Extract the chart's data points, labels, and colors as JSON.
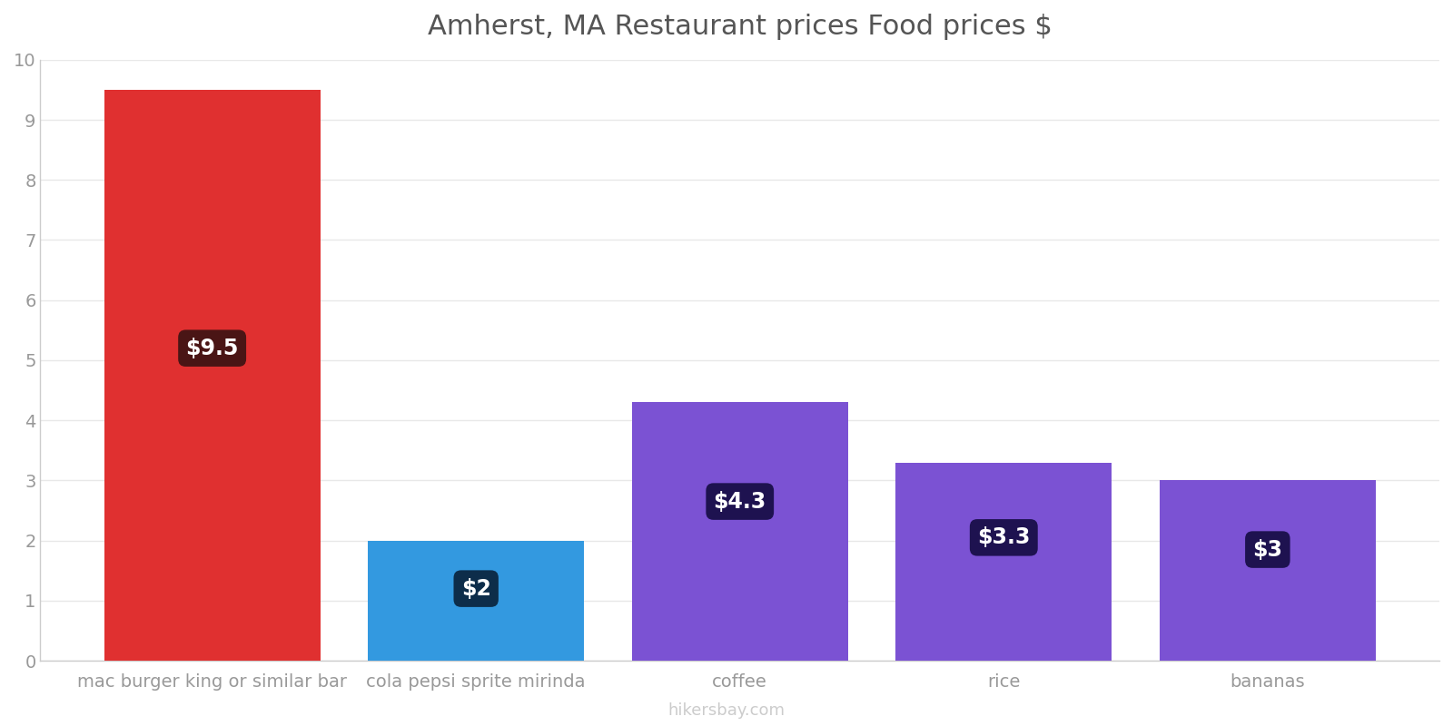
{
  "title": "Amherst, MA Restaurant prices Food prices $",
  "categories": [
    "mac burger king or similar bar",
    "cola pepsi sprite mirinda",
    "coffee",
    "rice",
    "bananas"
  ],
  "values": [
    9.5,
    2.0,
    4.3,
    3.3,
    3.0
  ],
  "labels": [
    "$9.5",
    "$2",
    "$4.3",
    "$3.3",
    "$3"
  ],
  "bar_colors": [
    "#e03030",
    "#3399e0",
    "#7b52d3",
    "#7b52d3",
    "#7b52d3"
  ],
  "label_bg_colors": [
    "#4a1515",
    "#0d2d4a",
    "#1e1250",
    "#1e1250",
    "#1e1250"
  ],
  "label_y_positions": [
    5.2,
    1.2,
    2.65,
    2.05,
    1.85
  ],
  "ylim": [
    0,
    10
  ],
  "yticks": [
    0,
    1,
    2,
    3,
    4,
    5,
    6,
    7,
    8,
    9,
    10
  ],
  "title_fontsize": 22,
  "tick_fontsize": 14,
  "label_fontsize": 17,
  "bar_width": 0.82,
  "watermark": "hikersbay.com",
  "background_color": "#ffffff",
  "grid_color": "#e8e8e8",
  "axis_color": "#cccccc",
  "title_color": "#555555",
  "tick_color": "#999999"
}
